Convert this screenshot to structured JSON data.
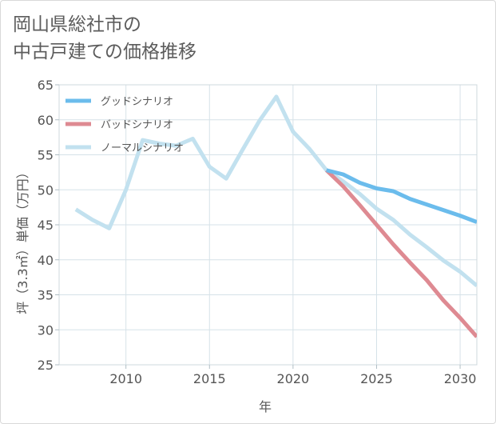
{
  "chart_data": {
    "type": "line",
    "title": [
      "岡山県総社市の",
      "中古戸建ての価格推移"
    ],
    "xlabel": "年",
    "ylabel": "坪（3.3㎡）単価（万円）",
    "xlim": [
      2006,
      2031
    ],
    "ylim": [
      25,
      65
    ],
    "x_ticks": [
      2010,
      2015,
      2020,
      2025,
      2030
    ],
    "y_ticks": [
      25,
      30,
      35,
      40,
      45,
      50,
      55,
      60,
      65
    ],
    "grid": true,
    "legend_position": "top-left",
    "series": [
      {
        "name": "グッドシナリオ",
        "color": "#6bbcec",
        "x": [
          2022,
          2023,
          2024,
          2025,
          2026,
          2027,
          2028,
          2029,
          2030,
          2031
        ],
        "values": [
          52.8,
          52.2,
          51.0,
          50.2,
          49.8,
          48.7,
          47.9,
          47.1,
          46.3,
          45.4
        ]
      },
      {
        "name": "バッドシナリオ",
        "color": "#de8a92",
        "x": [
          2022,
          2023,
          2024,
          2025,
          2026,
          2027,
          2028,
          2029,
          2030,
          2031
        ],
        "values": [
          52.8,
          50.5,
          47.8,
          45.0,
          42.2,
          39.6,
          37.1,
          34.2,
          31.7,
          29.0
        ]
      },
      {
        "name": "ノーマルシナリオ",
        "color": "#c2e1ef",
        "x": [
          2007,
          2008,
          2009,
          2010,
          2011,
          2012,
          2013,
          2014,
          2015,
          2016,
          2017,
          2018,
          2019,
          2020,
          2021,
          2022,
          2023,
          2024,
          2025,
          2026,
          2027,
          2028,
          2029,
          2030,
          2031
        ],
        "values": [
          47.2,
          45.7,
          44.5,
          50.0,
          57.1,
          56.6,
          56.3,
          57.3,
          53.3,
          51.6,
          55.8,
          59.9,
          63.3,
          58.3,
          55.8,
          52.8,
          51.2,
          49.4,
          47.3,
          45.7,
          43.6,
          41.8,
          39.9,
          38.3,
          36.3
        ]
      }
    ]
  }
}
